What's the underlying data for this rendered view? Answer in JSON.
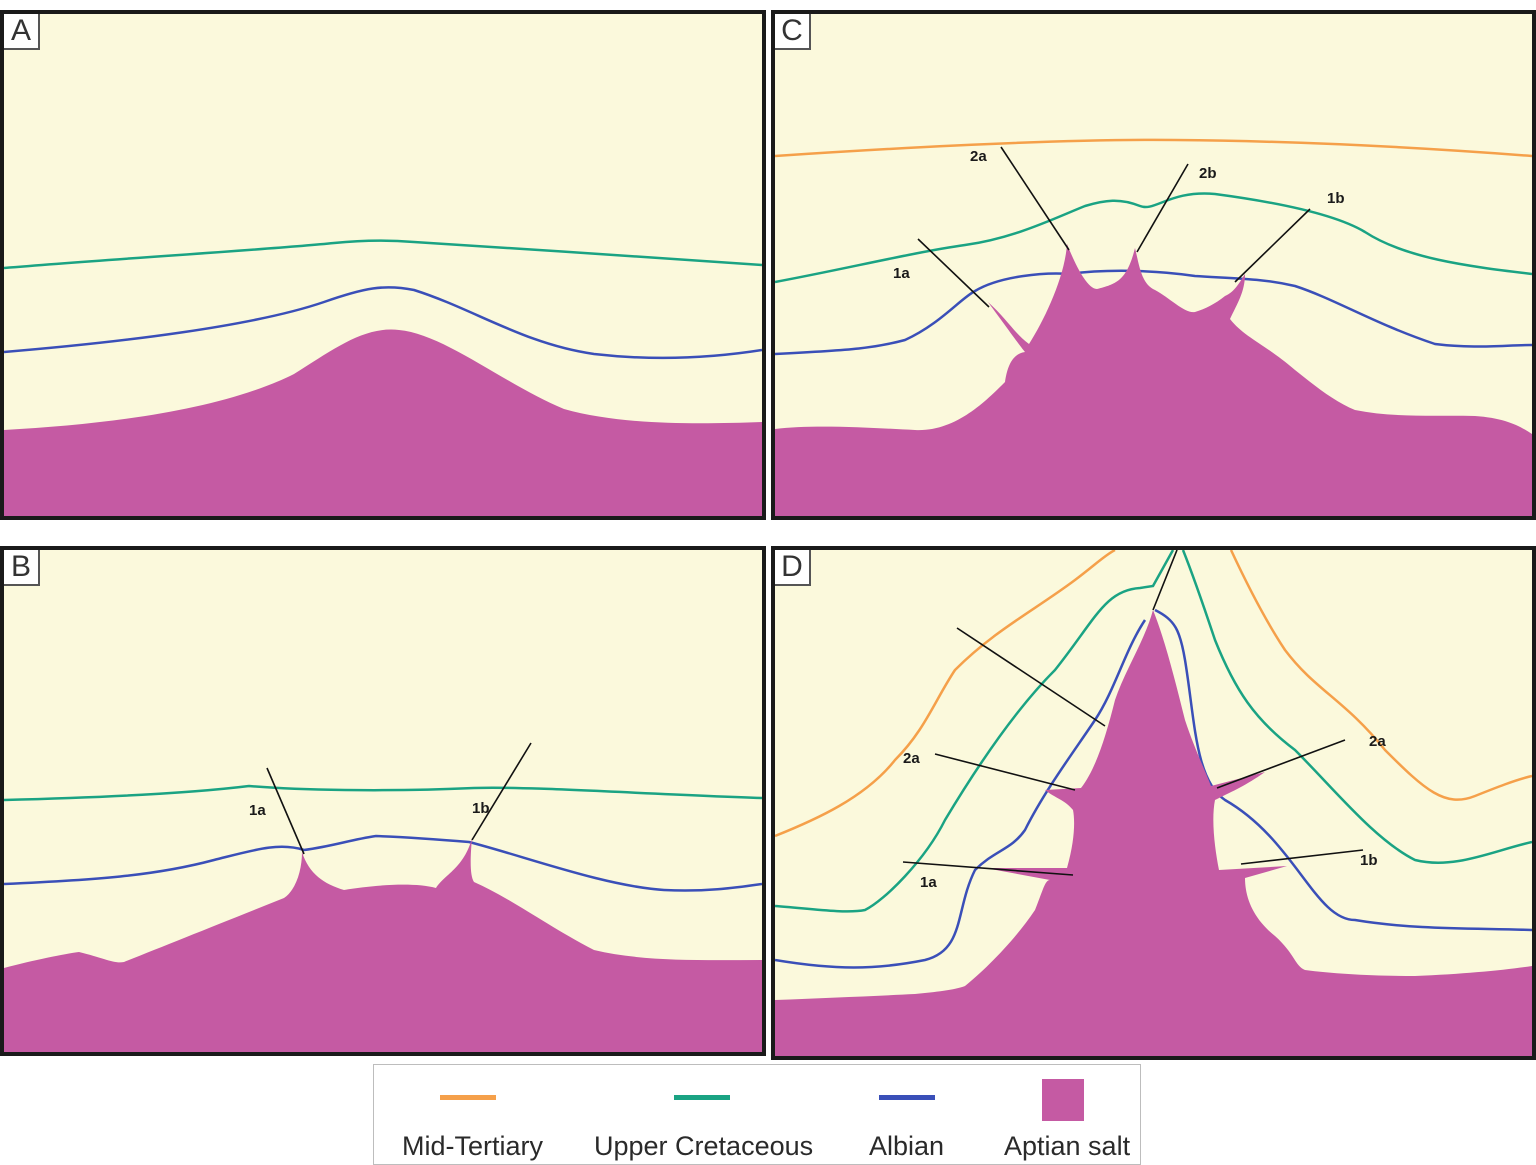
{
  "panels": {
    "a": {
      "label": "A"
    },
    "b": {
      "label": "B",
      "faults": [
        "1a",
        "1b"
      ]
    },
    "c": {
      "label": "C",
      "faults": [
        "1a",
        "1b",
        "2a",
        "2b"
      ]
    },
    "d": {
      "label": "D",
      "faults": [
        "1a",
        "1b",
        "2a",
        "2a"
      ]
    }
  },
  "legend": {
    "items": [
      {
        "label": "Mid-Tertiary",
        "color": "#f5a04a",
        "symbol": "line"
      },
      {
        "label": "Upper Cretaceous",
        "color": "#1aa383",
        "symbol": "line"
      },
      {
        "label": "Albian",
        "color": "#3a4fb8",
        "symbol": "line"
      },
      {
        "label": "Aptian salt",
        "color": "#c55aa3",
        "symbol": "box"
      }
    ]
  },
  "colors": {
    "background": "#fbf9dc",
    "salt": "#c55aa3",
    "mid_tertiary": "#f5a04a",
    "upper_cretaceous": "#1aa383",
    "albian": "#3a4fb8",
    "fault": "#111111"
  }
}
